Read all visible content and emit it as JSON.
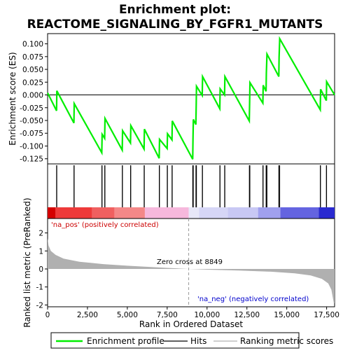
{
  "chart_data": {
    "type": "line",
    "title_line1": "Enrichment plot:",
    "title_line2": "REACTOME_SIGNALING_BY_FGFR1_MUTANTS",
    "es_panel": {
      "ylabel": "Enrichment score (ES)",
      "ylim": [
        -0.135,
        0.12
      ],
      "yticks": [
        -0.125,
        -0.1,
        -0.075,
        -0.05,
        -0.025,
        0.0,
        0.025,
        0.05,
        0.075,
        0.1
      ],
      "ytick_labels": [
        "-0.125",
        "-0.100",
        "-0.075",
        "-0.050",
        "-0.025",
        "0.000",
        "0.025",
        "0.050",
        "0.075",
        "0.100"
      ],
      "line_color": "#00ee00",
      "points": [
        [
          0,
          0.004
        ],
        [
          560,
          -0.031
        ],
        [
          580,
          0.008
        ],
        [
          1650,
          -0.055
        ],
        [
          1670,
          -0.017
        ],
        [
          3400,
          -0.113
        ],
        [
          3420,
          -0.077
        ],
        [
          3580,
          -0.085
        ],
        [
          3600,
          -0.046
        ],
        [
          4680,
          -0.108
        ],
        [
          4700,
          -0.07
        ],
        [
          5200,
          -0.094
        ],
        [
          5220,
          -0.06
        ],
        [
          6050,
          -0.106
        ],
        [
          6070,
          -0.067
        ],
        [
          7000,
          -0.124
        ],
        [
          7020,
          -0.087
        ],
        [
          7500,
          -0.105
        ],
        [
          7520,
          -0.076
        ],
        [
          7800,
          -0.088
        ],
        [
          7820,
          -0.051
        ],
        [
          9100,
          -0.126
        ],
        [
          9120,
          -0.087
        ],
        [
          9140,
          -0.048
        ],
        [
          9300,
          -0.058
        ],
        [
          9320,
          -0.02
        ],
        [
          9340,
          0.017
        ],
        [
          9700,
          -0.001
        ],
        [
          9720,
          0.036
        ],
        [
          10800,
          -0.027
        ],
        [
          10820,
          0.012
        ],
        [
          11100,
          -0.0
        ],
        [
          11120,
          0.036
        ],
        [
          12650,
          -0.051
        ],
        [
          12670,
          -0.015
        ],
        [
          12690,
          0.024
        ],
        [
          13500,
          -0.016
        ],
        [
          13520,
          0.019
        ],
        [
          13700,
          0.007
        ],
        [
          13720,
          0.043
        ],
        [
          13760,
          0.08
        ],
        [
          14500,
          0.036
        ],
        [
          14520,
          0.074
        ],
        [
          14560,
          0.11
        ],
        [
          17100,
          -0.029
        ],
        [
          17120,
          0.011
        ],
        [
          17480,
          -0.011
        ],
        [
          17500,
          0.026
        ],
        [
          18000,
          0.0
        ]
      ]
    },
    "hits_panel": {
      "hit_positions": [
        560,
        580,
        1650,
        1670,
        3400,
        3420,
        3580,
        3600,
        4680,
        4700,
        5200,
        5220,
        6050,
        6070,
        7000,
        7020,
        7500,
        7520,
        7800,
        7820,
        9100,
        9120,
        9140,
        9300,
        9320,
        9340,
        9700,
        9720,
        10800,
        10820,
        11100,
        11120,
        12650,
        12670,
        12690,
        13500,
        13520,
        13700,
        13720,
        13760,
        14500,
        14520,
        14560,
        17100,
        17120,
        17480,
        17500
      ],
      "band_segments": [
        {
          "from": 0,
          "to": 500,
          "color": "#d40000"
        },
        {
          "from": 500,
          "to": 2800,
          "color": "#ee3a3a"
        },
        {
          "from": 2800,
          "to": 4200,
          "color": "#f06060"
        },
        {
          "from": 4200,
          "to": 6100,
          "color": "#f48888"
        },
        {
          "from": 6100,
          "to": 8850,
          "color": "#f6b8dc"
        },
        {
          "from": 8850,
          "to": 9500,
          "color": "#e8e8f8"
        },
        {
          "from": 9500,
          "to": 11300,
          "color": "#d6d6f6"
        },
        {
          "from": 11300,
          "to": 13200,
          "color": "#c8c8f4"
        },
        {
          "from": 13200,
          "to": 14600,
          "color": "#a0a0ee"
        },
        {
          "from": 14600,
          "to": 17000,
          "color": "#6464e0"
        },
        {
          "from": 17000,
          "to": 18000,
          "color": "#2a2ad0"
        }
      ]
    },
    "metric_panel": {
      "ylabel": "Ranked list metric (PreRanked)",
      "ylim": [
        -2.1,
        2.8
      ],
      "yticks": [
        -2,
        -1,
        0,
        1,
        2
      ],
      "ytick_labels": [
        "-2",
        "-1",
        "0",
        "1",
        "2"
      ],
      "fill_color": "#b0b0b0",
      "profile": [
        [
          0,
          1.7
        ],
        [
          60,
          1.3
        ],
        [
          200,
          1.0
        ],
        [
          500,
          0.78
        ],
        [
          1000,
          0.57
        ],
        [
          2000,
          0.4
        ],
        [
          3500,
          0.27
        ],
        [
          5000,
          0.18
        ],
        [
          6500,
          0.11
        ],
        [
          7500,
          0.06
        ],
        [
          8849,
          0.0
        ],
        [
          10000,
          -0.04
        ],
        [
          12000,
          -0.09
        ],
        [
          14000,
          -0.15
        ],
        [
          15500,
          -0.24
        ],
        [
          16500,
          -0.36
        ],
        [
          17200,
          -0.55
        ],
        [
          17600,
          -0.8
        ],
        [
          17800,
          -1.15
        ],
        [
          17950,
          -1.9
        ],
        [
          18000,
          -1.9
        ]
      ],
      "pos_label": "'na_pos' (positively correlated)",
      "neg_label": "'na_neg' (negatively correlated)",
      "zero_cross_label": "Zero cross at 8849",
      "zero_cross": 8849
    },
    "xaxis": {
      "xlabel": "Rank in Ordered Dataset",
      "xlim": [
        0,
        18000
      ],
      "xticks": [
        0,
        2500,
        5000,
        7500,
        10000,
        12500,
        15000,
        17500
      ],
      "xtick_labels": [
        "0",
        "2,500",
        "5,000",
        "7,500",
        "10,000",
        "12,500",
        "15,000",
        "17,500"
      ]
    },
    "legend": {
      "placement": "bottom",
      "items": [
        {
          "label": "Enrichment profile",
          "color": "#00ee00"
        },
        {
          "label": "Hits",
          "color": "#000000"
        },
        {
          "label": "Ranking metric scores",
          "color": "#b0b0b0"
        }
      ]
    }
  }
}
